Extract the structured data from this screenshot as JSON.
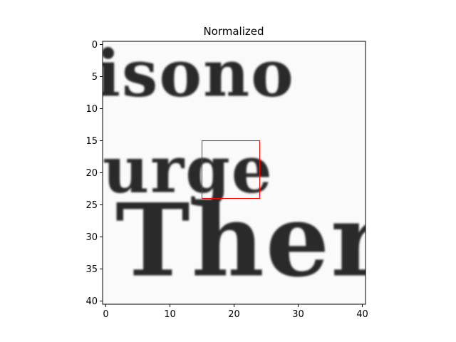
{
  "chart_data": {
    "type": "heatmap",
    "title": "Normalized",
    "colormap": "grayscale",
    "xlim": [
      -0.5,
      40.5
    ],
    "ylim": [
      40.5,
      -0.5
    ],
    "xticks": [
      0,
      10,
      20,
      30,
      40
    ],
    "yticks": [
      0,
      5,
      10,
      15,
      20,
      25,
      30,
      35,
      40
    ],
    "image_text_lines": [
      {
        "text": "isono",
        "baseline": 8,
        "x_start": -1.5,
        "cap_height": 7
      },
      {
        "text": "urge",
        "baseline": 23,
        "x_start": -0.5,
        "cap_height": 7
      },
      {
        "text": "There",
        "baseline": 36,
        "x_start": 1.5,
        "cap_height": 11
      }
    ],
    "highlight_box": {
      "x0": 15,
      "x1": 24,
      "y0": 15,
      "y1": 24,
      "color": "#ff0000"
    }
  }
}
